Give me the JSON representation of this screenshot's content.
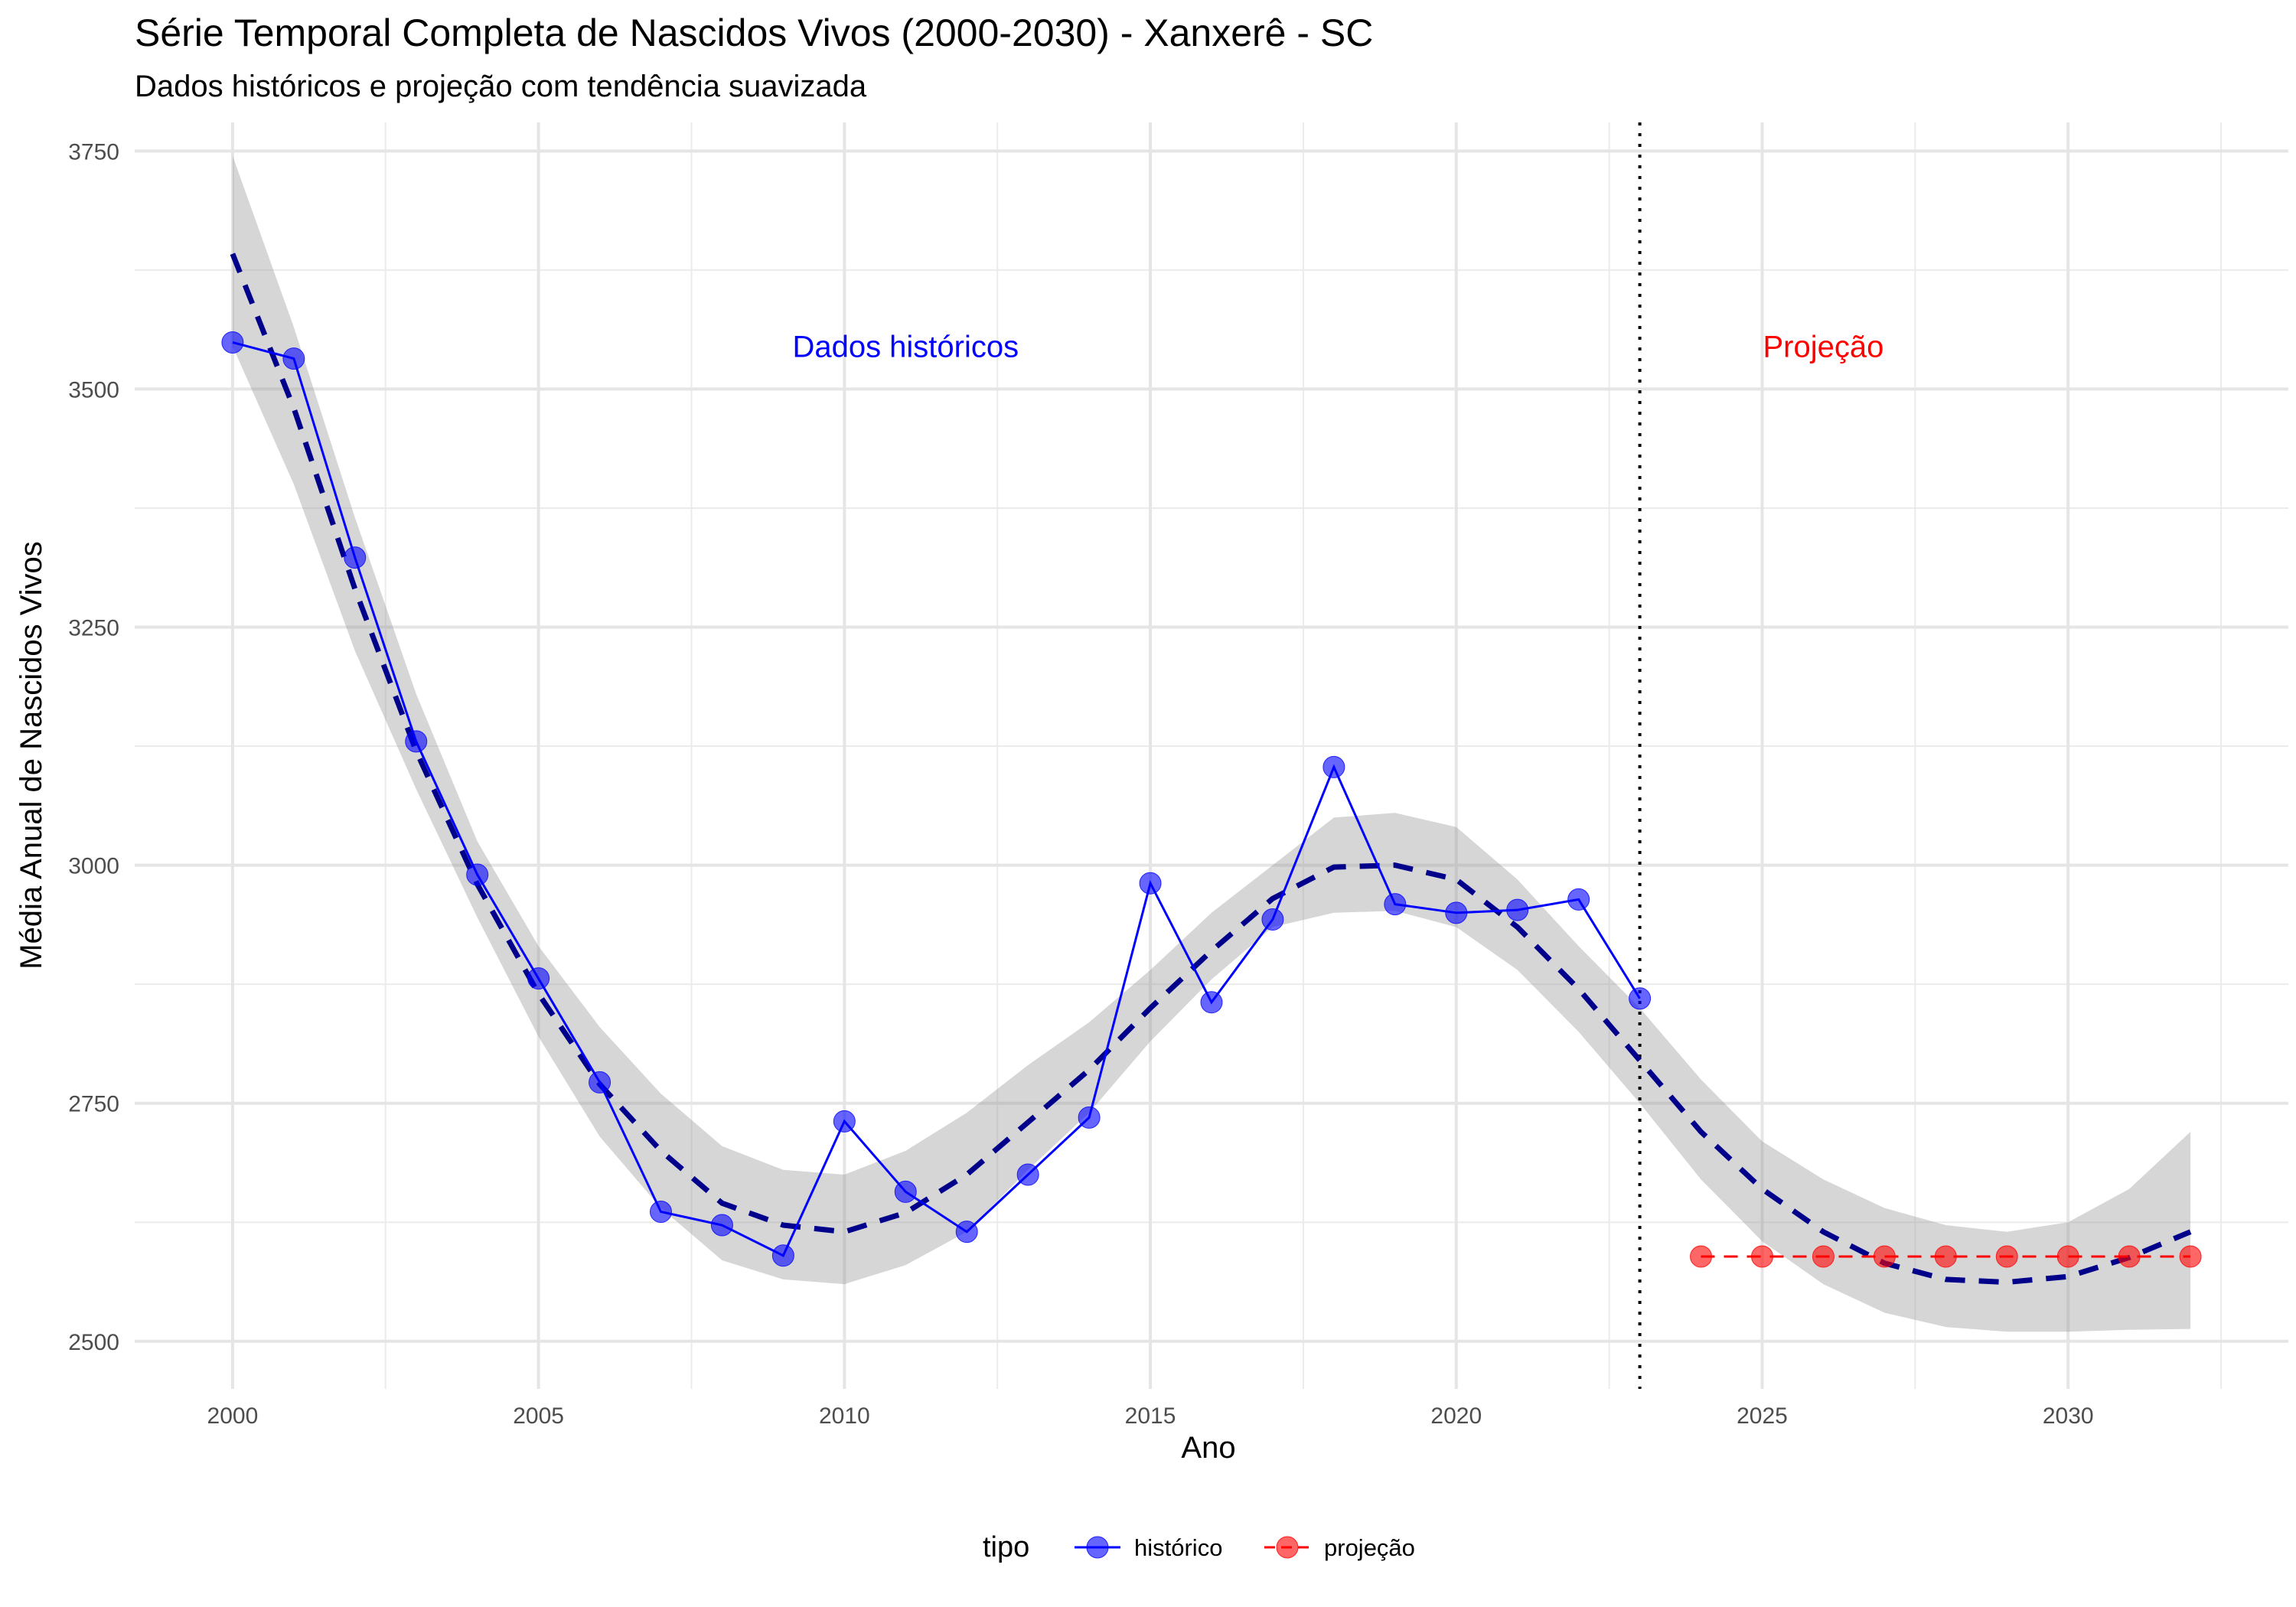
{
  "chart_data": {
    "type": "line",
    "title": "Série Temporal Completa de Nascidos Vivos (2000-2030) -  Xanxerê - SC",
    "subtitle": "Dados históricos e projeção com tendência suavizada",
    "xlabel": "Ano",
    "ylabel": "Média Anual de Nascidos Vivos",
    "xlim": [
      1998.4,
      2033.6
    ],
    "ylim": [
      2450,
      3780
    ],
    "x_ticks": [
      2000,
      2005,
      2010,
      2015,
      2020,
      2025,
      2030
    ],
    "y_ticks": [
      2500,
      2750,
      3000,
      3250,
      3500,
      3750
    ],
    "grid": true,
    "legend": {
      "title": "tipo",
      "position": "bottom"
    },
    "series": [
      {
        "name": "histórico",
        "color": "#0000ff",
        "line": "solid",
        "x": [
          2000,
          2001,
          2002,
          2003,
          2004,
          2005,
          2006,
          2007,
          2008,
          2009,
          2010,
          2011,
          2012,
          2013,
          2014,
          2015,
          2016,
          2017,
          2018,
          2019,
          2020,
          2021,
          2022,
          2023
        ],
        "values": [
          3549,
          3532,
          3323,
          3130,
          2990,
          2881,
          2772,
          2636,
          2622,
          2590,
          2731,
          2657,
          2615,
          2675,
          2735,
          2981,
          2856,
          2943,
          3103,
          2959,
          2950,
          2953,
          2964,
          2860
        ]
      },
      {
        "name": "projeção",
        "color": "#ff0000",
        "line": "dashed",
        "x": [
          2024,
          2025,
          2026,
          2027,
          2028,
          2029,
          2030,
          2031,
          2032
        ],
        "values": [
          2589,
          2589,
          2589,
          2589,
          2589,
          2589,
          2589,
          2589,
          2589
        ]
      }
    ],
    "trend": {
      "color": "#00008b",
      "line": "dashed",
      "x": [
        2000,
        2001,
        2002,
        2003,
        2004,
        2005,
        2006,
        2007,
        2008,
        2009,
        2010,
        2011,
        2012,
        2013,
        2014,
        2015,
        2016,
        2017,
        2018,
        2019,
        2020,
        2021,
        2022,
        2023,
        2024,
        2025,
        2026,
        2027,
        2028,
        2029,
        2030,
        2031,
        2032
      ],
      "values": [
        3642,
        3480,
        3290,
        3120,
        2980,
        2865,
        2770,
        2700,
        2645,
        2622,
        2615,
        2635,
        2675,
        2730,
        2785,
        2850,
        2910,
        2965,
        2998,
        3000,
        2985,
        2935,
        2870,
        2795,
        2720,
        2660,
        2615,
        2582,
        2565,
        2562,
        2568,
        2588,
        2615
      ],
      "ci_lower": [
        3545,
        3400,
        3225,
        3080,
        2945,
        2820,
        2715,
        2640,
        2585,
        2565,
        2560,
        2580,
        2615,
        2680,
        2740,
        2815,
        2880,
        2935,
        2950,
        2952,
        2935,
        2890,
        2825,
        2750,
        2670,
        2605,
        2560,
        2530,
        2515,
        2510,
        2510,
        2512,
        2513
      ],
      "ci_upper": [
        3745,
        3565,
        3365,
        3180,
        3025,
        2915,
        2830,
        2760,
        2705,
        2680,
        2675,
        2700,
        2740,
        2790,
        2835,
        2890,
        2950,
        3000,
        3050,
        3055,
        3040,
        2985,
        2915,
        2850,
        2775,
        2710,
        2670,
        2640,
        2622,
        2615,
        2625,
        2660,
        2720
      ]
    },
    "vline": {
      "x": 2023,
      "style": "dotted",
      "color": "#000000"
    },
    "annotations": [
      {
        "text": "Dados históricos",
        "x": 2011,
        "y": 3545,
        "color": "#0000ff"
      },
      {
        "text": "Projeção",
        "x": 2026,
        "y": 3545,
        "color": "#ff0000"
      }
    ]
  }
}
